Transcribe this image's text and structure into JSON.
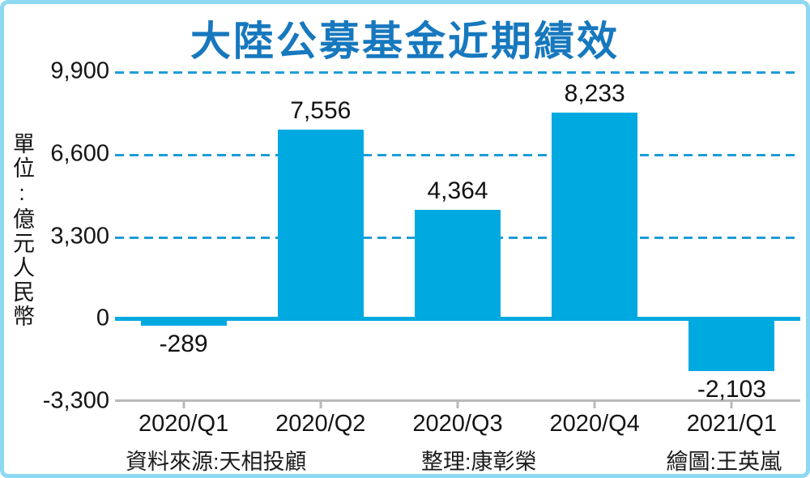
{
  "title": "大陸公募基金近期績效",
  "unit_label": "單位:億元人民幣",
  "footer": {
    "source": "資料來源:天相投顧",
    "compiled": "整理:康彰榮",
    "drawn": "繪圖:王英嵐"
  },
  "colors": {
    "bar": "#00a9e0",
    "title": "#1778be",
    "gridline": "#1e9cd7",
    "zero_line": "#00a9e0",
    "axis_line": "#b9b9b9",
    "frame_border": "#8fd8f2",
    "text": "#141414"
  },
  "chart_data": {
    "type": "bar",
    "categories": [
      "2020/Q1",
      "2020/Q2",
      "2020/Q3",
      "2020/Q4",
      "2021/Q1"
    ],
    "values": [
      -289,
      7556,
      4364,
      8233,
      -2103
    ],
    "value_labels": [
      "-289",
      "7,556",
      "4,364",
      "8,233",
      "-2,103"
    ],
    "title": "大陸公募基金近期績效",
    "xlabel": "",
    "ylabel": "單位:億元人民幣",
    "ylim": [
      -3300,
      9900
    ],
    "yticks": [
      9900,
      6600,
      3300,
      0,
      -3300
    ],
    "ytick_labels": [
      "9,900",
      "6,600",
      "3,300",
      "0",
      "-3,300"
    ],
    "grid": "horizontal dashed at 3300 intervals, solid line at 0",
    "legend": "none"
  }
}
